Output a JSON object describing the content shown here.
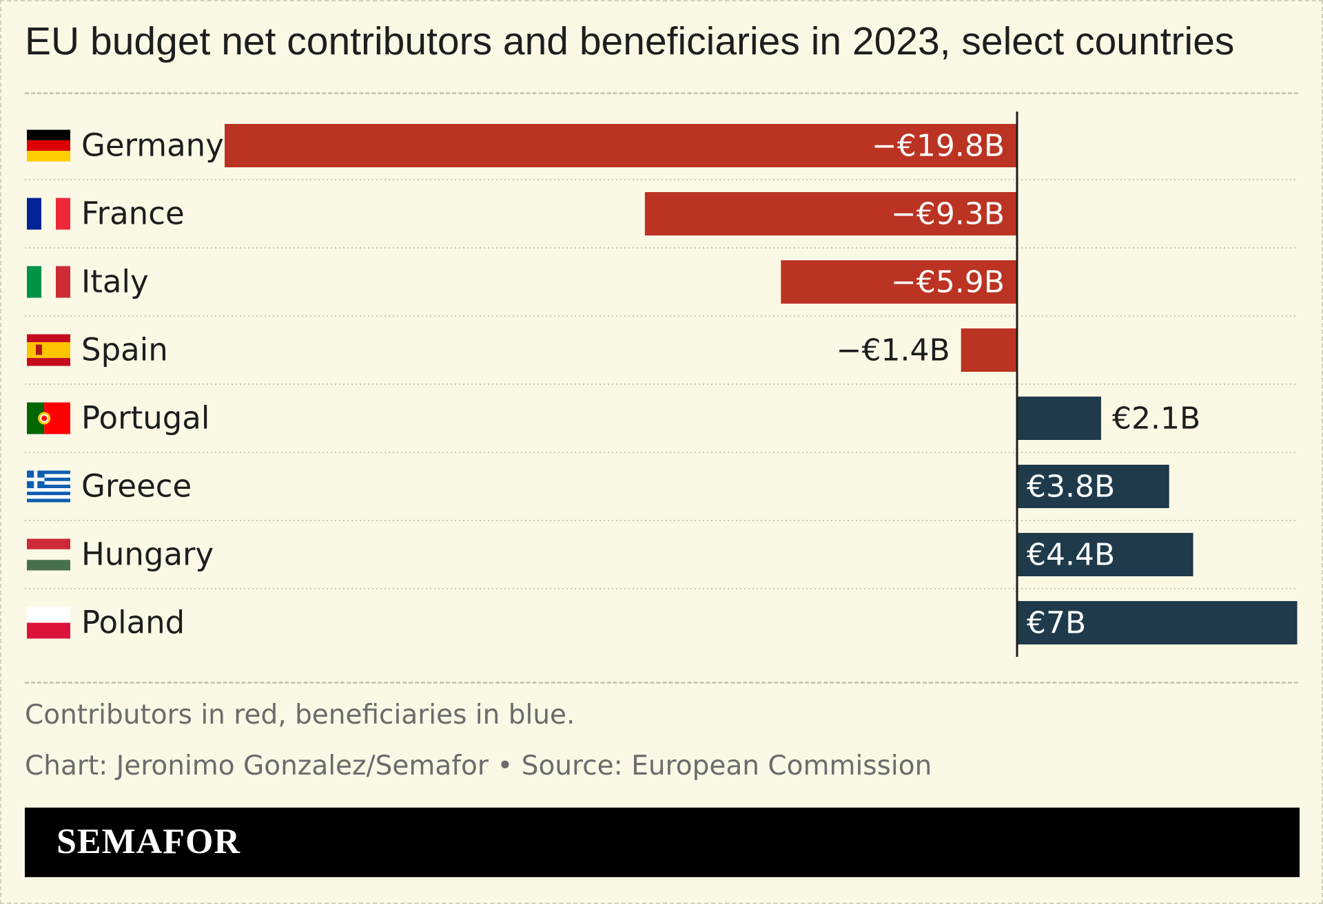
{
  "title": "EU budget net contributors and beneficiaries in 2023, select countries",
  "chart_data": {
    "type": "bar",
    "orientation": "horizontal",
    "unit": "€ billion",
    "categories": [
      "Germany",
      "France",
      "Italy",
      "Spain",
      "Portugal",
      "Greece",
      "Hungary",
      "Poland"
    ],
    "values": [
      -19.8,
      -9.3,
      -5.9,
      -1.4,
      2.1,
      3.8,
      4.4,
      7
    ],
    "value_labels": [
      "−€19.8B",
      "−€9.3B",
      "−€5.9B",
      "−€1.4B",
      "€2.1B",
      "€3.8B",
      "€4.4B",
      "€7B"
    ],
    "xlim": [
      -19.8,
      7
    ],
    "grid": false,
    "colors": {
      "negative": "#bb3322",
      "positive": "#1e3a4b"
    },
    "flags": [
      "germany-flag-icon",
      "france-flag-icon",
      "italy-flag-icon",
      "spain-flag-icon",
      "portugal-flag-icon",
      "greece-flag-icon",
      "hungary-flag-icon",
      "poland-flag-icon"
    ]
  },
  "notes": {
    "legend": "Contributors in red, beneficiaries in blue.",
    "credit": "Chart: Jeronimo Gonzalez/Semafor • Source: European Commission"
  },
  "brand": "SEMAFOR"
}
